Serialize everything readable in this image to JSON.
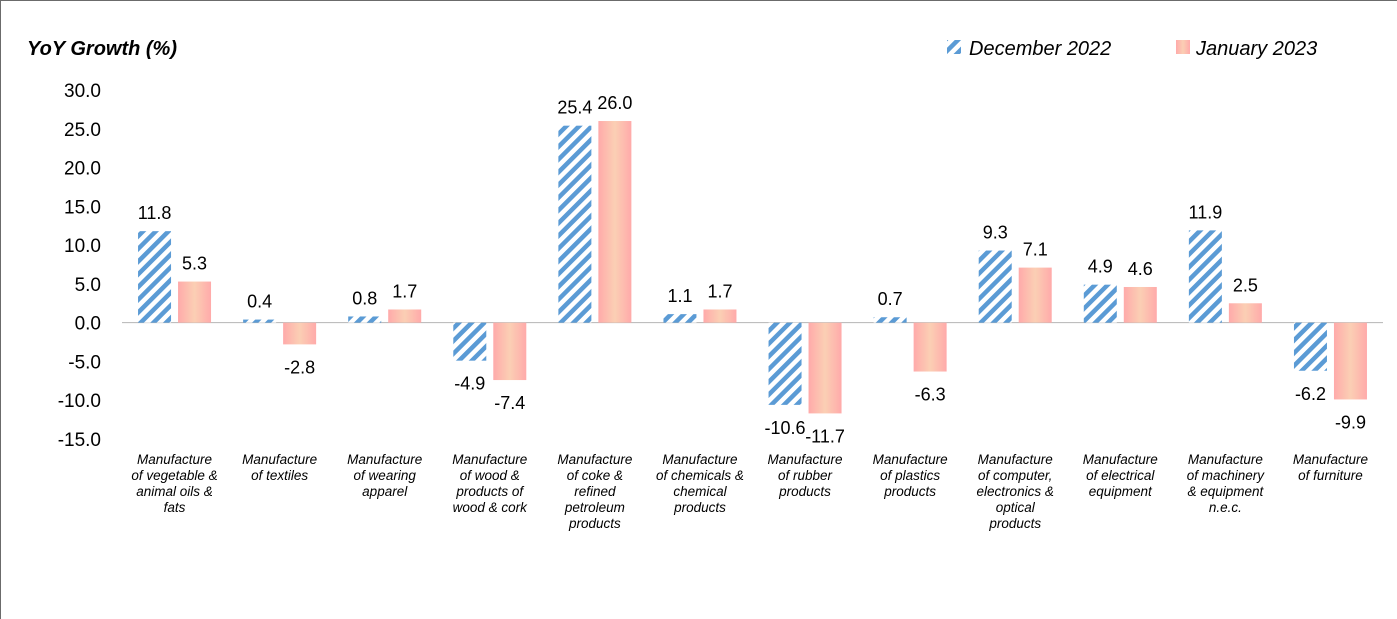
{
  "chart_data": {
    "type": "bar",
    "title": "",
    "ylabel": "YoY Growth (%)",
    "xlabel": "",
    "ylim": [
      -15,
      30
    ],
    "yticks": [
      "30.0",
      "25.0",
      "20.0",
      "15.0",
      "10.0",
      "5.0",
      "0.0",
      "-5.0",
      "-10.0",
      "-15.0"
    ],
    "ytick_values": [
      30,
      25,
      20,
      15,
      10,
      5,
      0,
      -5,
      -10,
      -15
    ],
    "legend_position": "top-right",
    "grid": false,
    "categories": [
      "Manufacture of vegetable & animal oils & fats",
      "Manufacture of textiles",
      "Manufacture of wearing apparel",
      "Manufacture of wood & products of wood & cork",
      "Manufacture of coke & refined petroleum products",
      "Manufacture of chemicals & chemical products",
      "Manufacture of rubber products",
      "Manufacture of plastics products",
      "Manufacture of computer, electronics & optical products",
      "Manufacture of electrical equipment",
      "Manufacture of machinery & equipment n.e.c.",
      "Manufacture of furniture"
    ],
    "series": [
      {
        "name": "December 2022",
        "color": "#5b9bd5",
        "pattern": "diagonal-stripes",
        "values": [
          11.8,
          0.4,
          0.8,
          -4.9,
          25.4,
          1.1,
          -10.6,
          0.7,
          9.3,
          4.9,
          11.9,
          -6.2
        ],
        "labels": [
          "11.8",
          "0.4",
          "0.8",
          "-4.9",
          "25.4",
          "1.1",
          "-10.6",
          "0.7",
          "9.3",
          "4.9",
          "11.9",
          "-6.2"
        ]
      },
      {
        "name": "January 2023",
        "color": "#f4b183",
        "gradient": [
          "#fbc8b0",
          "#ffaaaa"
        ],
        "values": [
          5.3,
          -2.8,
          1.7,
          -7.4,
          26.0,
          1.7,
          -11.7,
          -6.3,
          7.1,
          4.6,
          2.5,
          -9.9
        ],
        "labels": [
          "5.3",
          "-2.8",
          "1.7",
          "-7.4",
          "26.0",
          "1.7",
          "-11.7",
          "-6.3",
          "7.1",
          "4.6",
          "2.5",
          "-9.9"
        ]
      }
    ]
  },
  "category_lines": [
    [
      "Manufacture",
      "of vegetable &",
      "animal oils &",
      "fats"
    ],
    [
      "Manufacture",
      "of textiles"
    ],
    [
      "Manufacture",
      "of wearing",
      "apparel"
    ],
    [
      "Manufacture",
      "of wood &",
      "products of",
      "wood & cork"
    ],
    [
      "Manufacture",
      "of coke &",
      "refined",
      "petroleum",
      "products"
    ],
    [
      "Manufacture",
      "of chemicals &",
      "chemical",
      "products"
    ],
    [
      "Manufacture",
      "of rubber",
      "products"
    ],
    [
      "Manufacture",
      "of plastics",
      "products"
    ],
    [
      "Manufacture",
      "of computer,",
      "electronics &",
      "optical",
      "products"
    ],
    [
      "Manufacture",
      "of electrical",
      "equipment"
    ],
    [
      "Manufacture",
      "of machinery",
      "& equipment",
      "n.e.c."
    ],
    [
      "Manufacture",
      "of furniture"
    ]
  ]
}
